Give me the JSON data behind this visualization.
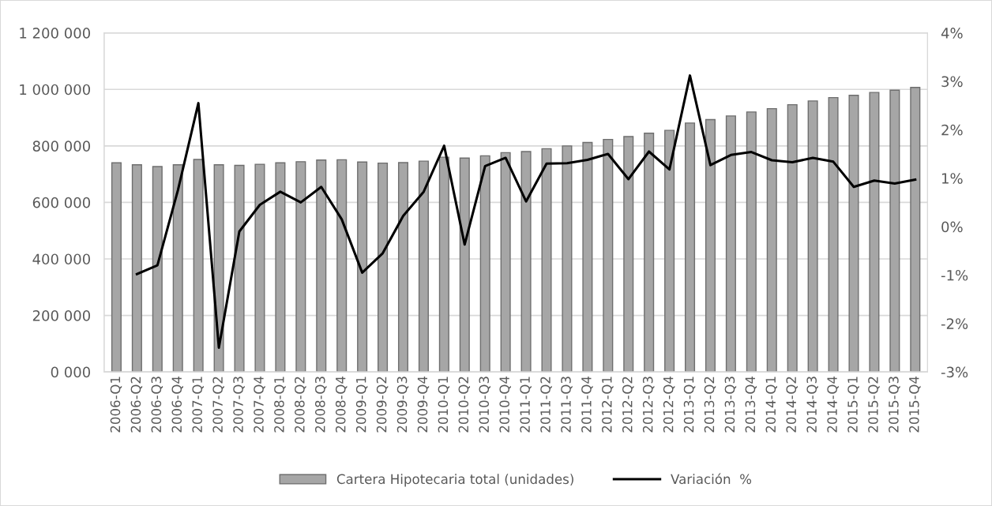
{
  "chart_data": {
    "type": "bar",
    "categories": [
      "2006-Q1",
      "2006-Q2",
      "2006-Q3",
      "2006-Q4",
      "2007-Q1",
      "2007-Q2",
      "2007-Q3",
      "2007-Q4",
      "2008-Q1",
      "2008-Q2",
      "2008-Q3",
      "2008-Q4",
      "2009-Q1",
      "2009-Q2",
      "2009-Q3",
      "2009-Q4",
      "2010-Q1",
      "2010-Q2",
      "2010-Q3",
      "2010-Q4",
      "2011-Q1",
      "2011-Q2",
      "2011-Q3",
      "2011-Q4",
      "2012-Q1",
      "2012-Q2",
      "2012-Q3",
      "2012-Q4",
      "2013-Q1",
      "2013-Q2",
      "2013-Q3",
      "2013-Q4",
      "2014-Q1",
      "2014-Q2",
      "2014-Q3",
      "2014-Q4",
      "2015-Q1",
      "2015-Q2",
      "2015-Q3",
      "2015-Q4"
    ],
    "series": [
      {
        "name": "Cartera Hipotecaria total (unidades)",
        "color": "#a6a6a6",
        "values": [
          740000,
          733000,
          727000,
          733000,
          752000,
          733000,
          731000,
          735000,
          740000,
          744000,
          750000,
          751000,
          743000,
          739000,
          741000,
          746000,
          760000,
          757000,
          765000,
          776000,
          780000,
          790000,
          800000,
          812000,
          823000,
          833000,
          845000,
          855000,
          881000,
          893000,
          906000,
          920000,
          932000,
          946000,
          959000,
          971000,
          979000,
          989000,
          997000,
          1007000
        ]
      },
      {
        "name": "Variación  %",
        "type": "line",
        "axis": "y2",
        "color": "#000000",
        "values": [
          null,
          -0.98,
          -0.8,
          0.75,
          2.55,
          -2.5,
          -0.1,
          0.45,
          0.72,
          0.5,
          0.82,
          0.15,
          -0.95,
          -0.55,
          0.22,
          0.72,
          1.67,
          -0.37,
          1.25,
          1.42,
          0.52,
          1.3,
          1.31,
          1.38,
          1.5,
          0.98,
          1.55,
          1.18,
          3.12,
          1.27,
          1.48,
          1.54,
          1.37,
          1.33,
          1.42,
          1.34,
          0.82,
          0.95,
          0.89,
          0.97
        ]
      }
    ],
    "ylim": [
      0,
      1200000
    ],
    "yticks": [
      {
        "value": 0,
        "label": "0 000"
      },
      {
        "value": 200000,
        "label": "200 000"
      },
      {
        "value": 400000,
        "label": "400 000"
      },
      {
        "value": 600000,
        "label": "600 000"
      },
      {
        "value": 800000,
        "label": "800 000"
      },
      {
        "value": 1000000,
        "label": "1 000 000"
      },
      {
        "value": 1200000,
        "label": "1 200 000"
      }
    ],
    "y2lim": [
      -3,
      4
    ],
    "y2ticks": [
      {
        "value": -3,
        "label": "-3%"
      },
      {
        "value": -2,
        "label": "-2%"
      },
      {
        "value": -1,
        "label": "-1%"
      },
      {
        "value": 0,
        "label": "0%"
      },
      {
        "value": 1,
        "label": "1%"
      },
      {
        "value": 2,
        "label": "2%"
      },
      {
        "value": 3,
        "label": "3%"
      },
      {
        "value": 4,
        "label": "4%"
      }
    ],
    "grid": "y",
    "legend": "bottom",
    "marker": "none",
    "line_style": "solid"
  }
}
